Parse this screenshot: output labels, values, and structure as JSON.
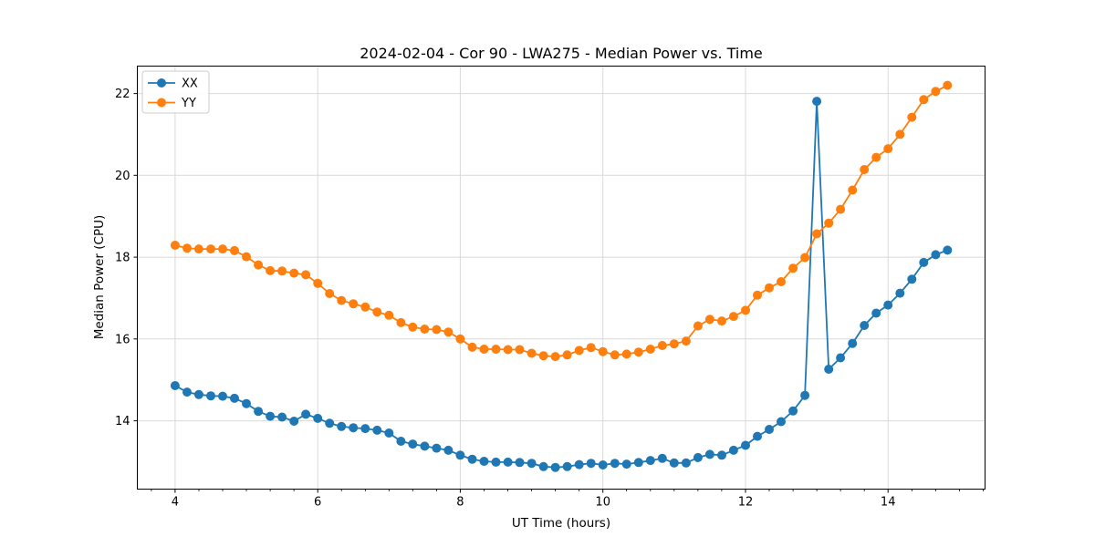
{
  "figure": {
    "background": "#ffffff",
    "text_color": "#000000",
    "grid_color": "#d9d9d9",
    "spine_color": "#000000",
    "legend_border_color": "#cccccc"
  },
  "chart_data": {
    "type": "line",
    "title": "2024-02-04 - Cor 90 - LWA275 - Median Power vs. Time",
    "xlabel": "UT Time (hours)",
    "ylabel": "Median Power (CPU)",
    "xlim": [
      3.47,
      15.36
    ],
    "ylim": [
      12.33,
      22.67
    ],
    "xticks": [
      4,
      6,
      8,
      10,
      12,
      14
    ],
    "yticks": [
      14,
      16,
      18,
      20,
      22
    ],
    "x_minor_tick_step": 0.33333,
    "grid": true,
    "legend_position": "upper left",
    "marker": "circle",
    "x": [
      4.0,
      4.167,
      4.333,
      4.5,
      4.667,
      4.833,
      5.0,
      5.167,
      5.333,
      5.5,
      5.667,
      5.833,
      6.0,
      6.167,
      6.333,
      6.5,
      6.667,
      6.833,
      7.0,
      7.167,
      7.333,
      7.5,
      7.667,
      7.833,
      8.0,
      8.167,
      8.333,
      8.5,
      8.667,
      8.833,
      9.0,
      9.167,
      9.333,
      9.5,
      9.667,
      9.833,
      10.0,
      10.167,
      10.333,
      10.5,
      10.667,
      10.833,
      11.0,
      11.167,
      11.333,
      11.5,
      11.667,
      11.833,
      12.0,
      12.167,
      12.333,
      12.5,
      12.667,
      12.833,
      13.0,
      13.167,
      13.333,
      13.5,
      13.667,
      13.833,
      14.0,
      14.167,
      14.333,
      14.5,
      14.667,
      14.833
    ],
    "series": [
      {
        "name": "XX",
        "color": "#1f77b4",
        "values": [
          14.86,
          14.7,
          14.64,
          14.61,
          14.6,
          14.55,
          14.42,
          14.23,
          14.11,
          14.09,
          13.99,
          14.16,
          14.06,
          13.94,
          13.86,
          13.83,
          13.81,
          13.77,
          13.7,
          13.5,
          13.43,
          13.38,
          13.33,
          13.28,
          13.16,
          13.06,
          13.01,
          12.99,
          12.99,
          12.98,
          12.96,
          12.88,
          12.86,
          12.88,
          12.93,
          12.96,
          12.92,
          12.96,
          12.94,
          12.98,
          13.03,
          13.08,
          12.97,
          12.97,
          13.1,
          13.18,
          13.16,
          13.28,
          13.4,
          13.62,
          13.79,
          13.98,
          14.24,
          14.62,
          21.81,
          15.26,
          15.54,
          15.89,
          16.33,
          16.63,
          16.83,
          17.12,
          17.46,
          17.87,
          18.06,
          18.17
        ]
      },
      {
        "name": "YY",
        "color": "#ff7f0e",
        "values": [
          18.29,
          18.22,
          18.2,
          18.2,
          18.2,
          18.16,
          18.01,
          17.81,
          17.67,
          17.66,
          17.61,
          17.57,
          17.36,
          17.11,
          16.94,
          16.86,
          16.78,
          16.66,
          16.58,
          16.4,
          16.29,
          16.24,
          16.23,
          16.17,
          16.0,
          15.8,
          15.75,
          15.75,
          15.74,
          15.74,
          15.65,
          15.59,
          15.57,
          15.61,
          15.72,
          15.79,
          15.69,
          15.61,
          15.63,
          15.68,
          15.75,
          15.84,
          15.88,
          15.95,
          16.32,
          16.48,
          16.44,
          16.55,
          16.7,
          17.07,
          17.25,
          17.4,
          17.73,
          17.99,
          18.57,
          18.83,
          19.17,
          19.64,
          20.14,
          20.44,
          20.65,
          21.0,
          21.42,
          21.85,
          22.05,
          22.2
        ]
      }
    ]
  }
}
